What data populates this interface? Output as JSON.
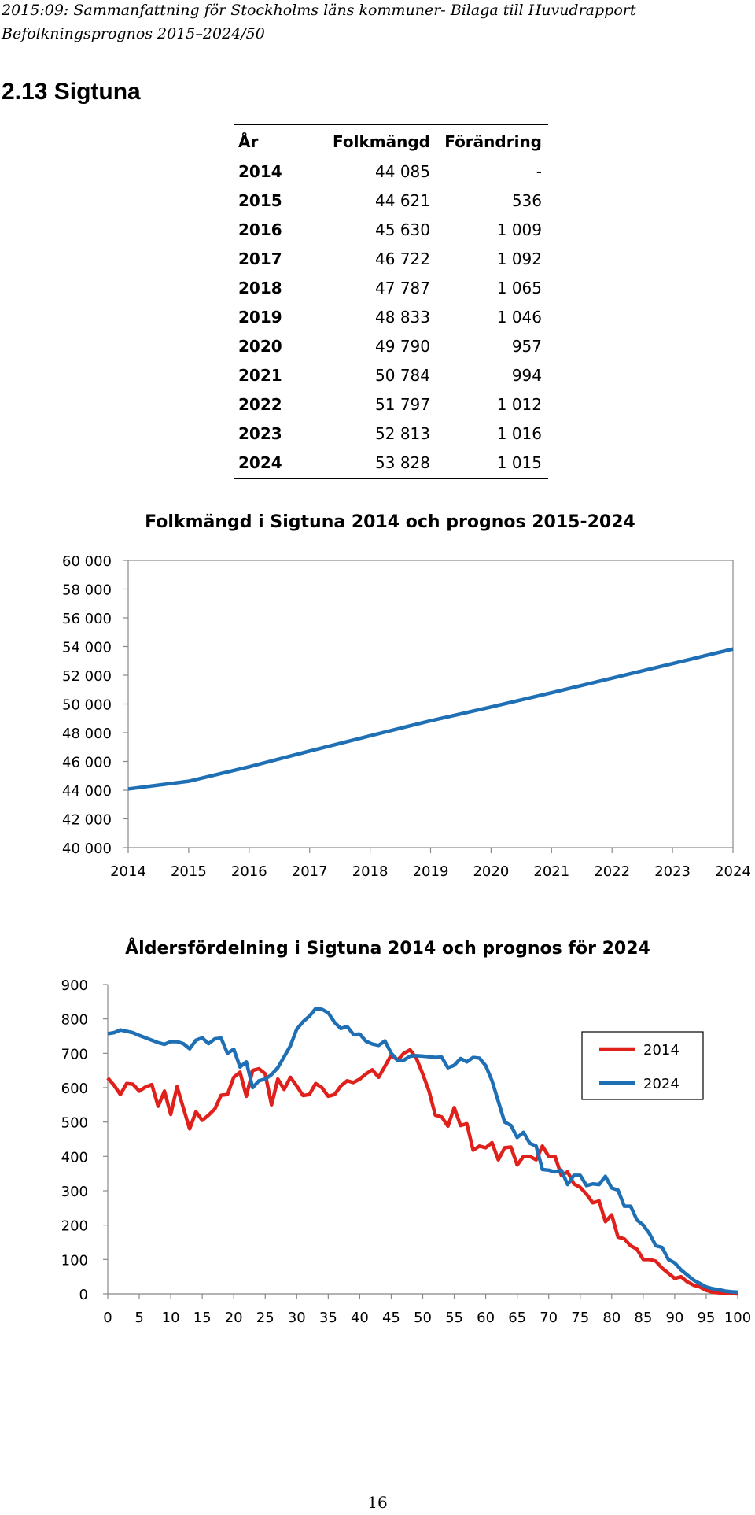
{
  "header": {
    "line1": "2015:09: Sammanfattning för Stockholms läns kommuner- Bilaga till Huvudrapport",
    "line2": "Befolkningsprognos 2015–2024/50"
  },
  "section_title": "2.13  Sigtuna",
  "table": {
    "headers": [
      "År",
      "Folkmängd",
      "Förändring"
    ],
    "rows": [
      [
        "2014",
        "44 085",
        "-"
      ],
      [
        "2015",
        "44 621",
        "536"
      ],
      [
        "2016",
        "45 630",
        "1 009"
      ],
      [
        "2017",
        "46 722",
        "1 092"
      ],
      [
        "2018",
        "47 787",
        "1 065"
      ],
      [
        "2019",
        "48 833",
        "1 046"
      ],
      [
        "2020",
        "49 790",
        "957"
      ],
      [
        "2021",
        "50 784",
        "994"
      ],
      [
        "2022",
        "51 797",
        "1 012"
      ],
      [
        "2023",
        "52 813",
        "1 016"
      ],
      [
        "2024",
        "53 828",
        "1 015"
      ]
    ]
  },
  "chart_data": [
    {
      "type": "line",
      "title": "Folkmängd i Sigtuna 2014 och prognos 2015-2024",
      "xlabel": "",
      "ylabel": "",
      "x": [
        "2014",
        "2015",
        "2016",
        "2017",
        "2018",
        "2019",
        "2020",
        "2021",
        "2022",
        "2023",
        "2024"
      ],
      "ylim": [
        40000,
        60000
      ],
      "ytick_labels": [
        "40 000",
        "42 000",
        "44 000",
        "46 000",
        "48 000",
        "50 000",
        "52 000",
        "54 000",
        "56 000",
        "58 000",
        "60 000"
      ],
      "series": [
        {
          "name": "Folkmängd",
          "color": "#1f6fb5",
          "values": [
            44085,
            44621,
            45630,
            46722,
            47787,
            48833,
            49790,
            50784,
            51797,
            52813,
            53828
          ]
        }
      ]
    },
    {
      "type": "line",
      "title": "Åldersfördelning i Sigtuna 2014 och prognos för 2024",
      "xlabel": "",
      "ylabel": "",
      "xlim": [
        0,
        100
      ],
      "ylim": [
        0,
        900
      ],
      "xtick_labels": [
        "0",
        "5",
        "10",
        "15",
        "20",
        "25",
        "30",
        "35",
        "40",
        "45",
        "50",
        "55",
        "60",
        "65",
        "70",
        "75",
        "80",
        "85",
        "90",
        "95",
        "100"
      ],
      "ytick_labels": [
        "0",
        "100",
        "200",
        "300",
        "400",
        "500",
        "600",
        "700",
        "800",
        "900"
      ],
      "legend": "right",
      "series": [
        {
          "name": "2014",
          "color": "#e0201b",
          "values": [
            628,
            607,
            580,
            612,
            610,
            590,
            602,
            609,
            546,
            590,
            522,
            603,
            541,
            480,
            530,
            505,
            520,
            538,
            578,
            580,
            630,
            645,
            575,
            650,
            655,
            640,
            550,
            625,
            595,
            630,
            605,
            577,
            580,
            612,
            600,
            575,
            580,
            605,
            620,
            615,
            625,
            640,
            652,
            630,
            662,
            695,
            680,
            700,
            710,
            685,
            640,
            590,
            520,
            515,
            488,
            542,
            490,
            495,
            418,
            430,
            425,
            440,
            390,
            425,
            427,
            375,
            400,
            400,
            390,
            430,
            400,
            400,
            345,
            355,
            320,
            310,
            290,
            265,
            270,
            210,
            230,
            165,
            160,
            140,
            130,
            100,
            100,
            95,
            75,
            60,
            45,
            50,
            35,
            25,
            20,
            10,
            5,
            3,
            2,
            1,
            0
          ]
        },
        {
          "name": "2024",
          "color": "#1f6fb5",
          "values": [
            757,
            760,
            768,
            764,
            760,
            752,
            745,
            738,
            731,
            726,
            734,
            734,
            728,
            713,
            738,
            745,
            728,
            742,
            744,
            700,
            712,
            660,
            675,
            600,
            620,
            625,
            638,
            658,
            690,
            722,
            770,
            792,
            808,
            830,
            828,
            818,
            790,
            772,
            778,
            755,
            756,
            735,
            727,
            723,
            736,
            700,
            680,
            680,
            692,
            693,
            692,
            690,
            688,
            689,
            658,
            665,
            685,
            675,
            688,
            686,
            664,
            620,
            560,
            500,
            490,
            455,
            470,
            438,
            430,
            362,
            360,
            355,
            360,
            318,
            345,
            345,
            315,
            320,
            318,
            342,
            308,
            302,
            255,
            255,
            215,
            200,
            175,
            140,
            135,
            100,
            90,
            70,
            55,
            40,
            30,
            20,
            15,
            12,
            8,
            6,
            5
          ]
        }
      ]
    }
  ],
  "page_number": "16"
}
